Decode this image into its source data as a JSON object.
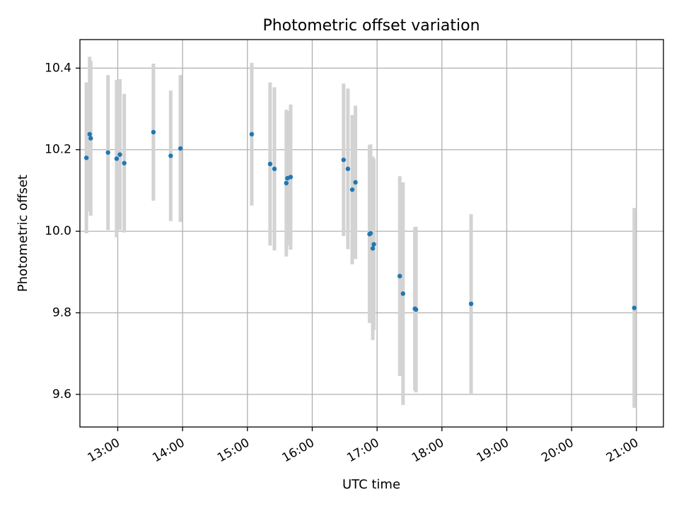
{
  "chart_data": {
    "type": "scatter",
    "title": "Photometric offset variation",
    "xlabel": "UTC time",
    "ylabel": "Photometric offset",
    "xlim": [
      "12:25",
      "21:25"
    ],
    "ylim": [
      9.52,
      10.47
    ],
    "x_ticks": [
      "13:00",
      "14:00",
      "15:00",
      "16:00",
      "17:00",
      "18:00",
      "19:00",
      "20:00",
      "21:00"
    ],
    "y_ticks": [
      "9.6",
      "9.8",
      "10.0",
      "10.2",
      "10.4"
    ],
    "grid": true,
    "colors": {
      "point": "#1f77b4",
      "errorbar": "#d3d3d3",
      "grid": "#b0b0b0"
    },
    "series": [
      {
        "points": [
          {
            "x": "12:31",
            "y": 10.18,
            "yerr": 0.185
          },
          {
            "x": "12:34",
            "y": 10.238,
            "yerr": 0.19
          },
          {
            "x": "12:35",
            "y": 10.228,
            "yerr": 0.19
          },
          {
            "x": "12:51",
            "y": 10.193,
            "yerr": 0.19
          },
          {
            "x": "12:59",
            "y": 10.178,
            "yerr": 0.193
          },
          {
            "x": "13:02",
            "y": 10.188,
            "yerr": 0.185
          },
          {
            "x": "13:06",
            "y": 10.167,
            "yerr": 0.17
          },
          {
            "x": "13:33",
            "y": 10.243,
            "yerr": 0.168
          },
          {
            "x": "13:49",
            "y": 10.185,
            "yerr": 0.16
          },
          {
            "x": "13:58",
            "y": 10.203,
            "yerr": 0.18
          },
          {
            "x": "15:04",
            "y": 10.238,
            "yerr": 0.175
          },
          {
            "x": "15:21",
            "y": 10.165,
            "yerr": 0.2
          },
          {
            "x": "15:25",
            "y": 10.153,
            "yerr": 0.2
          },
          {
            "x": "15:36",
            "y": 10.118,
            "yerr": 0.18
          },
          {
            "x": "15:37",
            "y": 10.13,
            "yerr": 0.165
          },
          {
            "x": "15:40",
            "y": 10.133,
            "yerr": 0.178
          },
          {
            "x": "16:29",
            "y": 10.175,
            "yerr": 0.187
          },
          {
            "x": "16:33",
            "y": 10.153,
            "yerr": 0.197
          },
          {
            "x": "16:37",
            "y": 10.102,
            "yerr": 0.183
          },
          {
            "x": "16:40",
            "y": 10.12,
            "yerr": 0.188
          },
          {
            "x": "16:53",
            "y": 9.993,
            "yerr": 0.218
          },
          {
            "x": "16:54",
            "y": 9.995,
            "yerr": 0.218
          },
          {
            "x": "16:56",
            "y": 9.958,
            "yerr": 0.225
          },
          {
            "x": "16:57",
            "y": 9.968,
            "yerr": 0.21
          },
          {
            "x": "17:21",
            "y": 9.89,
            "yerr": 0.245
          },
          {
            "x": "17:24",
            "y": 9.847,
            "yerr": 0.273
          },
          {
            "x": "17:35",
            "y": 9.81,
            "yerr": 0.2
          },
          {
            "x": "17:36",
            "y": 9.808,
            "yerr": 0.203
          },
          {
            "x": "18:27",
            "y": 9.822,
            "yerr": 0.22
          },
          {
            "x": "20:58",
            "y": 9.812,
            "yerr": 0.245
          }
        ]
      }
    ]
  }
}
